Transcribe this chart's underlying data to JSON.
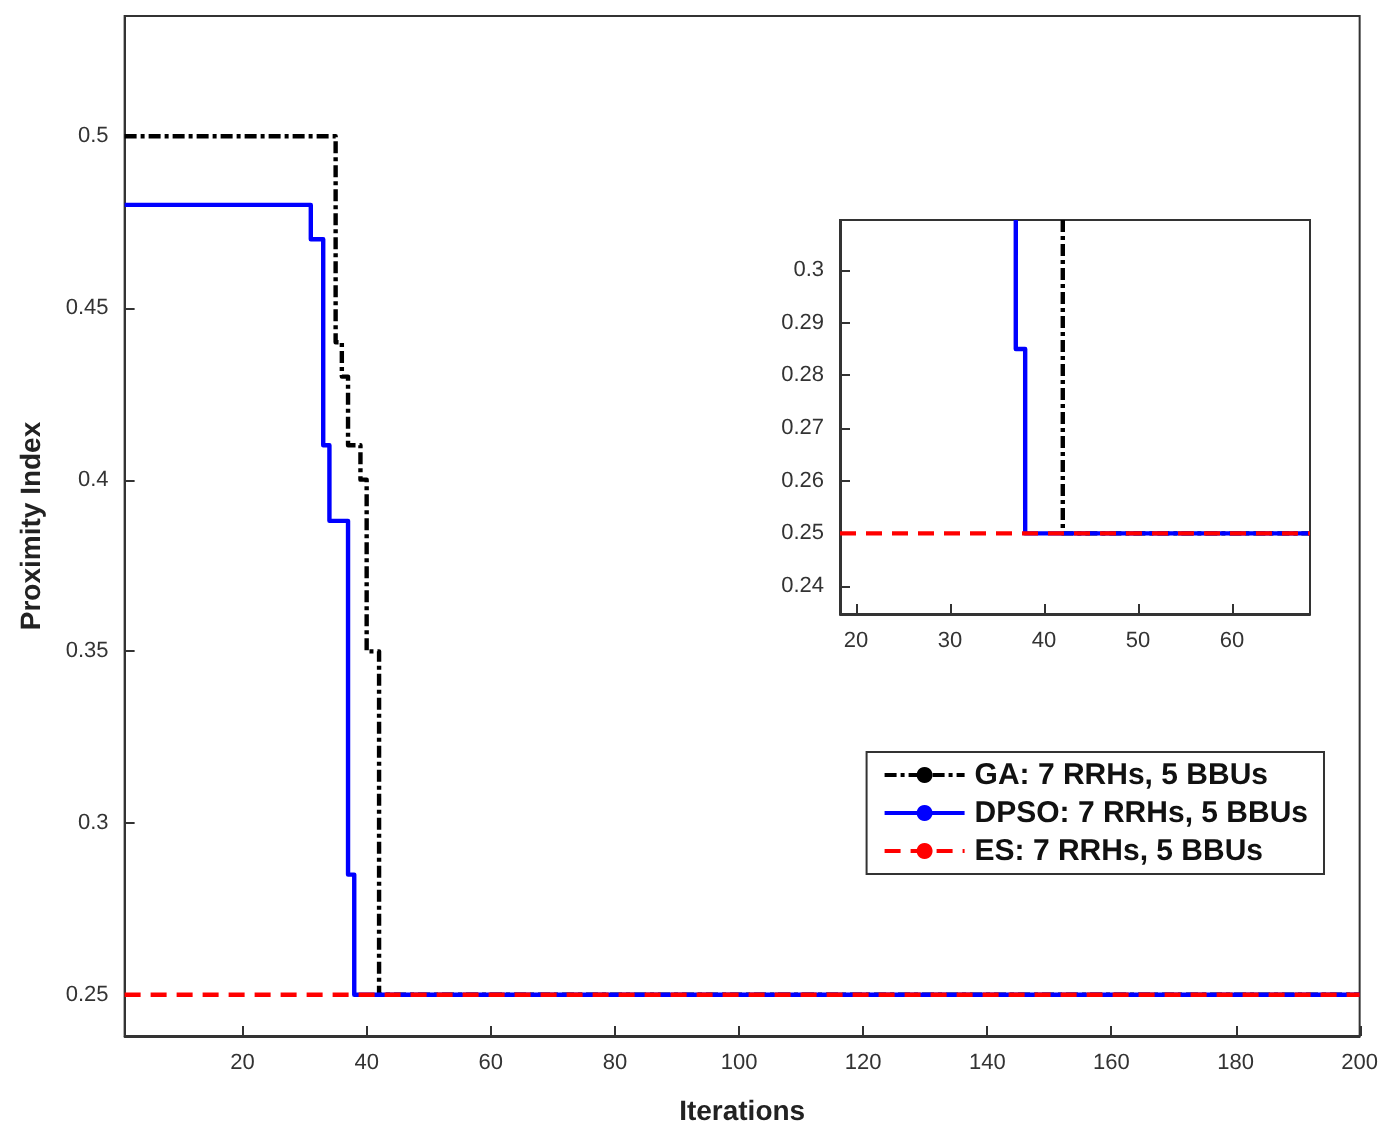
{
  "chart_data": [
    {
      "type": "step",
      "xlabel": "Iterations",
      "ylabel": "Proximity Index",
      "xlim": [
        1,
        200
      ],
      "ylim": [
        0.238,
        0.535
      ],
      "xticks": [
        20,
        40,
        60,
        80,
        100,
        120,
        140,
        160,
        180,
        200
      ],
      "yticks": [
        0.25,
        0.3,
        0.35,
        0.4,
        0.45,
        0.5
      ],
      "grid": false,
      "legend": "right",
      "marker": "none",
      "series": [
        {
          "name": "GA: 7 RRHs, 5 BBUs",
          "color": "#000000",
          "line_style": "dashdot",
          "x": [
            1,
            35,
            36,
            37,
            39,
            40,
            42,
            200
          ],
          "values": [
            0.5,
            0.44,
            0.43,
            0.41,
            0.4,
            0.35,
            0.25,
            0.25
          ]
        },
        {
          "name": "DPSO: 7 RRHs, 5 BBUs",
          "color": "#0000ff",
          "line_style": "solid",
          "x": [
            1,
            31,
            33,
            34,
            37,
            38,
            200
          ],
          "values": [
            0.48,
            0.47,
            0.41,
            0.388,
            0.285,
            0.25,
            0.25
          ]
        },
        {
          "name": "ES: 7 RRHs, 5 BBUs",
          "color": "#ff0000",
          "line_style": "dashed",
          "x": [
            1,
            200
          ],
          "values": [
            0.25,
            0.25
          ]
        }
      ]
    },
    {
      "type": "step",
      "xlim": [
        18.3,
        68.3
      ],
      "ylim": [
        0.2347,
        0.3095
      ],
      "xticks": [
        20,
        30,
        40,
        50,
        60
      ],
      "yticks": [
        0.24,
        0.25,
        0.26,
        0.27,
        0.28,
        0.29,
        0.3
      ],
      "grid": false,
      "legend": false,
      "marker": "none",
      "series": [
        {
          "color": "#000000",
          "line_style": "dashdot",
          "x": [
            42,
            42,
            68.3
          ],
          "values": [
            0.3095,
            0.25,
            0.25
          ]
        },
        {
          "color": "#0000ff",
          "line_style": "solid",
          "x": [
            37,
            37,
            38,
            68.3
          ],
          "values": [
            0.3095,
            0.285,
            0.25,
            0.25
          ]
        },
        {
          "color": "#ff0000",
          "line_style": "dashed",
          "x": [
            18.3,
            68.3
          ],
          "values": [
            0.25,
            0.25
          ]
        }
      ]
    }
  ]
}
